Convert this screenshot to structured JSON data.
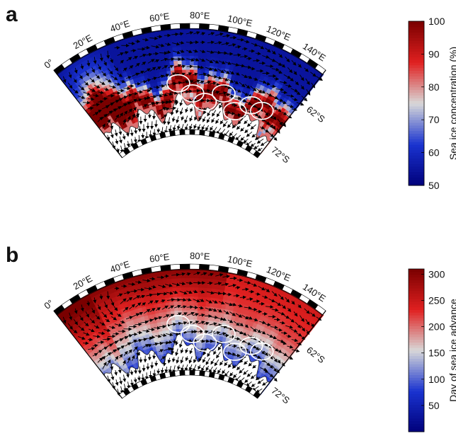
{
  "panels": [
    {
      "letter": "a",
      "field": "concentration",
      "lon_labels": [
        "0°",
        "20°E",
        "40°E",
        "60°E",
        "80°E",
        "100°E",
        "120°E",
        "140°E"
      ],
      "lat_labels": [
        "72°S",
        "62°S"
      ],
      "colorbar": {
        "title": "Sea ice concentration (%)",
        "ticks": [
          "50",
          "60",
          "70",
          "80",
          "90",
          "100"
        ],
        "range": [
          50,
          100
        ],
        "colors": [
          "#00007a",
          "#1a33d0",
          "#d8d8d8",
          "#e02020",
          "#7a0000"
        ]
      }
    },
    {
      "letter": "b",
      "field": "advance",
      "lon_labels": [
        "0°",
        "20°E",
        "40°E",
        "60°E",
        "80°E",
        "100°E",
        "120°E",
        "140°E"
      ],
      "lat_labels": [
        "72°S",
        "62°S"
      ],
      "colorbar": {
        "title": "Day of sea ice advance",
        "ticks": [
          "50",
          "100",
          "150",
          "200",
          "250",
          "300"
        ],
        "range": [
          0,
          310
        ],
        "colors": [
          "#00007a",
          "#1a33d0",
          "#d8d8d8",
          "#e02020",
          "#7a0000"
        ]
      }
    }
  ]
}
